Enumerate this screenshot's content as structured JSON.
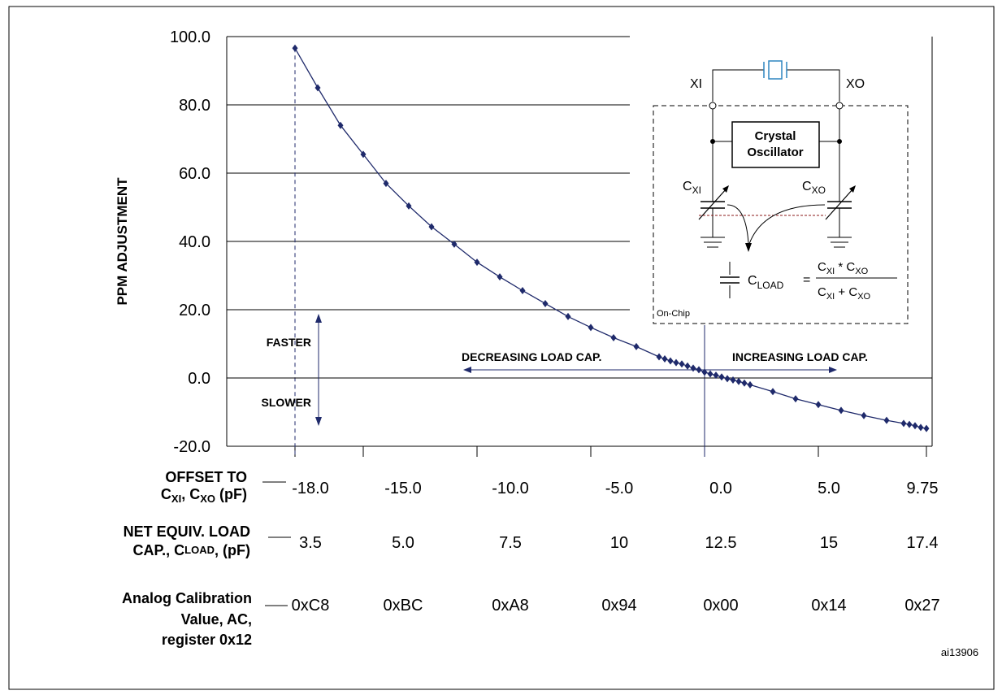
{
  "chart_data": {
    "type": "line",
    "title": "",
    "ylabel": "PPM ADJUSTMENT",
    "xlabel": "",
    "ylim": [
      -20,
      100
    ],
    "xlim": [
      -21,
      10
    ],
    "grid": "horizontal",
    "y_ticks": [
      "100.0",
      "80.0",
      "60.0",
      "40.0",
      "20.0",
      "0.0",
      "-20.0"
    ],
    "series": [
      {
        "name": "",
        "color": "#1f2a6b",
        "points": [
          [
            -18,
            96.6
          ],
          [
            -17,
            85.0
          ],
          [
            -16,
            74.0
          ],
          [
            -15,
            65.5
          ],
          [
            -14,
            57.0
          ],
          [
            -13,
            50.4
          ],
          [
            -12,
            44.3
          ],
          [
            -11,
            39.2
          ],
          [
            -10,
            33.9
          ],
          [
            -9,
            29.6
          ],
          [
            -8,
            25.6
          ],
          [
            -7,
            21.8
          ],
          [
            -6,
            18.0
          ],
          [
            -5,
            14.8
          ],
          [
            -4,
            11.8
          ],
          [
            -3,
            9.2
          ],
          [
            -2,
            6.2
          ],
          [
            -1.75,
            5.6
          ],
          [
            -1.5,
            5.0
          ],
          [
            -1.25,
            4.5
          ],
          [
            -1,
            4.1
          ],
          [
            -0.75,
            3.5
          ],
          [
            -0.5,
            2.9
          ],
          [
            -0.25,
            2.4
          ],
          [
            0,
            1.7
          ],
          [
            0.25,
            1.2
          ],
          [
            0.5,
            0.8
          ],
          [
            0.75,
            0.3
          ],
          [
            1,
            -0.2
          ],
          [
            1.25,
            -0.6
          ],
          [
            1.5,
            -1.0
          ],
          [
            1.75,
            -1.5
          ],
          [
            2,
            -2.0
          ],
          [
            3,
            -4.0
          ],
          [
            4,
            -6.1
          ],
          [
            5,
            -7.8
          ],
          [
            6,
            -9.5
          ],
          [
            7,
            -11.0
          ],
          [
            8,
            -12.4
          ],
          [
            8.75,
            -13.3
          ],
          [
            9,
            -13.6
          ],
          [
            9.25,
            -14.0
          ],
          [
            9.5,
            -14.5
          ],
          [
            9.75,
            -14.8
          ]
        ]
      }
    ],
    "reference_lines": {
      "x": [
        -18,
        0
      ],
      "y": [
        0
      ]
    },
    "x_ticks": [
      -18,
      -15,
      -10,
      -5,
      0,
      5,
      9.75
    ],
    "annotations": {
      "faster": "FASTER",
      "slower": "SLOWER",
      "decreasing": "DECREASING LOAD CAP.",
      "increasing": "INCREASING LOAD CAP."
    },
    "rows": [
      {
        "label_lines": [
          "OFFSET TO",
          "C",
          "XI",
          ", C",
          "XO",
          " (pF)"
        ],
        "values": [
          "-18.0",
          "-15.0",
          "-10.0",
          "-5.0",
          "0.0",
          "5.0",
          "9.75"
        ]
      },
      {
        "label_lines": [
          "NET EQUIV. LOAD",
          "CAP., C",
          "LOAD",
          ", (pF)"
        ],
        "values": [
          "3.5",
          "5.0",
          "7.5",
          "10",
          "12.5",
          "15",
          "17.4"
        ]
      },
      {
        "label_lines": [
          "Analog Calibration",
          "Value, AC,",
          "register 0x12"
        ],
        "values": [
          "0xC8",
          "0xBC",
          "0xA8",
          "0x94",
          "0x00",
          "0x14",
          "0x27"
        ]
      }
    ]
  },
  "inset": {
    "xi": "XI",
    "xo": "XO",
    "osc_line1": "Crystal",
    "osc_line2": "Oscillator",
    "cxi": "C",
    "cxi_sub": "XI",
    "cxo": "C",
    "cxo_sub": "XO",
    "cload": "C",
    "cload_sub": "LOAD",
    "eq": "=",
    "num_a": "C",
    "num_a_sub": "XI",
    "num_op": " * C",
    "num_b_sub": "XO",
    "den_a": "C",
    "den_a_sub": "XI",
    "den_op": " + C",
    "den_b_sub": "XO",
    "on_chip": "On-Chip"
  },
  "figure_id": "ai13906",
  "colors": {
    "series": "#1f2a6b",
    "crystal": "#2e86c1",
    "dotted": "#8b1a1a"
  }
}
